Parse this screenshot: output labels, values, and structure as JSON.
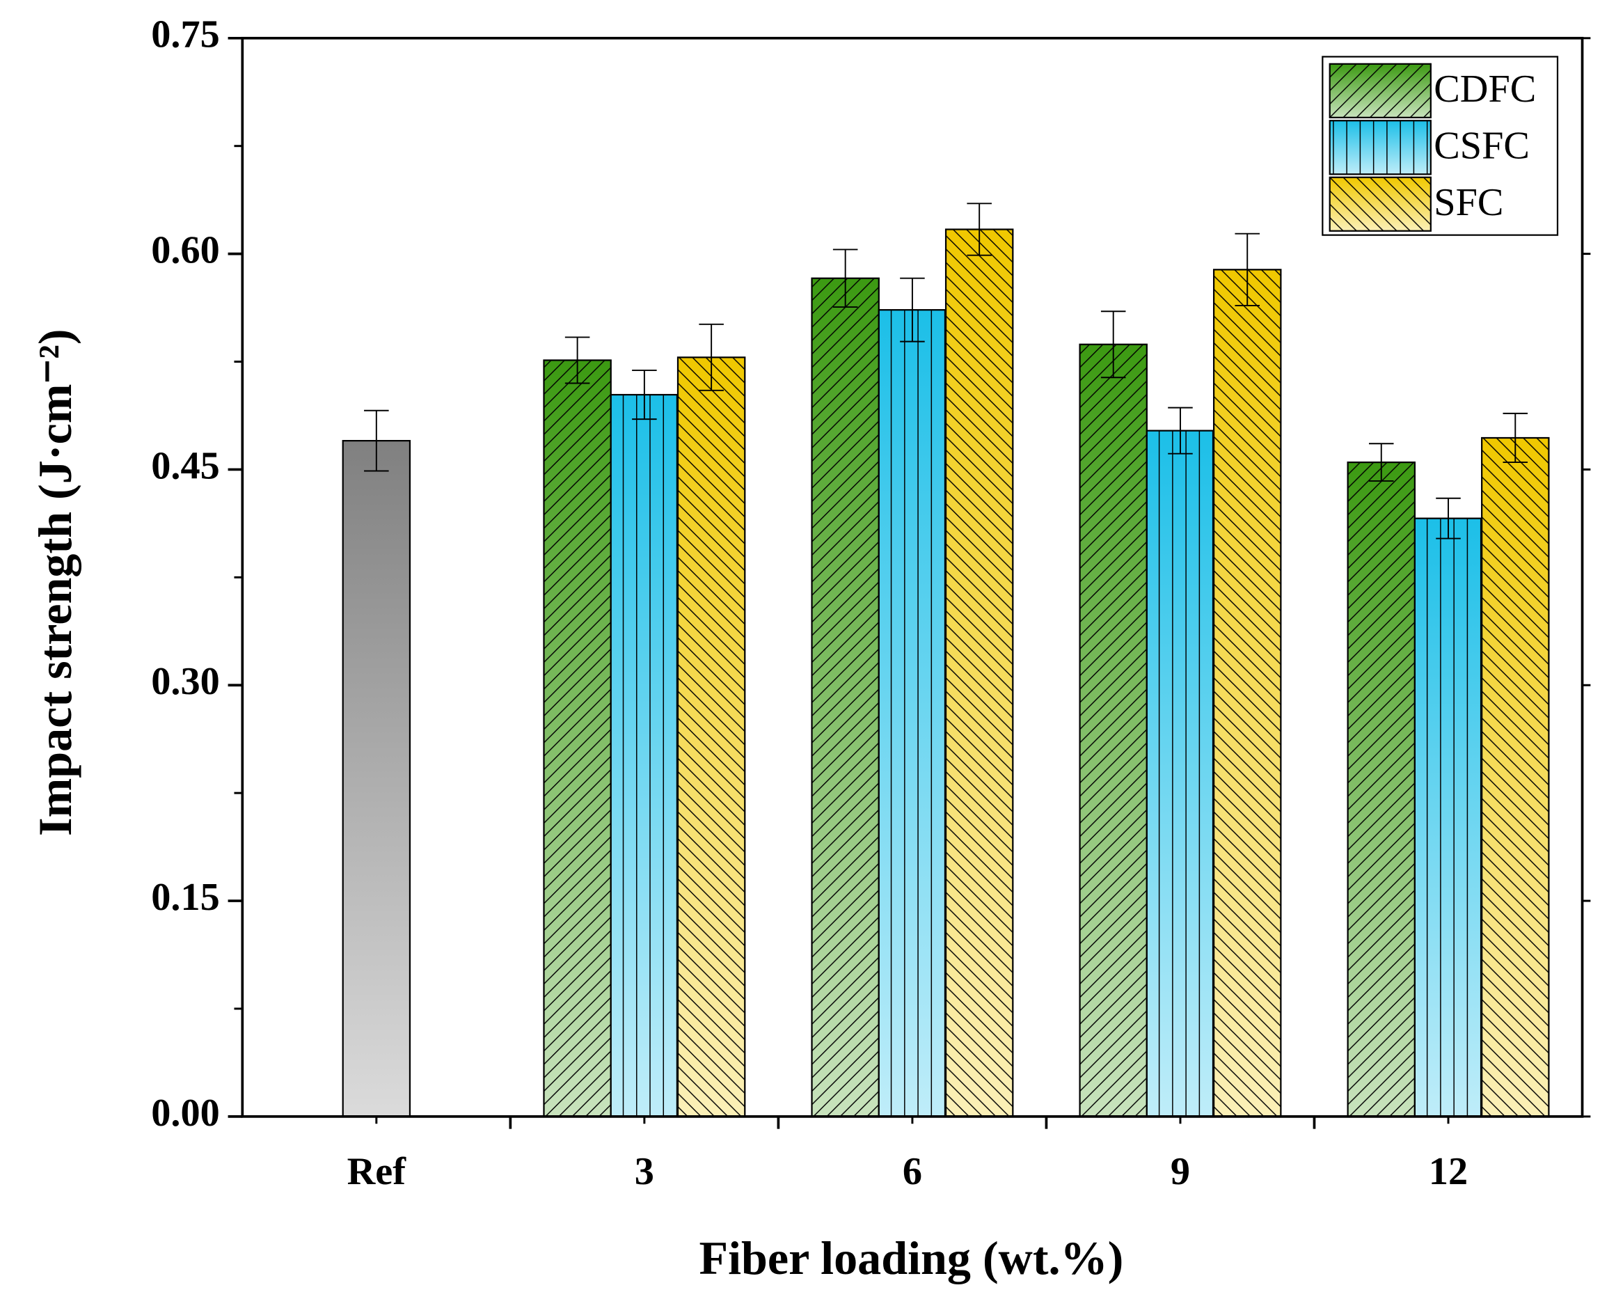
{
  "chart_data": {
    "type": "bar",
    "categories": [
      "Ref",
      "3",
      "6",
      "9",
      "12"
    ],
    "xlabel": "Fiber loading (wt.%)",
    "ylabel": "Impact strength (J·cm⁻²)",
    "reference": {
      "value": 0.47,
      "error": 0.021,
      "color": "#808080"
    },
    "series": [
      {
        "name": "CDFC",
        "color": "#3c9a12",
        "hatch": "forward",
        "values": [
          null,
          0.526,
          0.583,
          0.537,
          0.455
        ],
        "errors": [
          null,
          0.016,
          0.02,
          0.023,
          0.013
        ]
      },
      {
        "name": "CSFC",
        "color": "#1cbfe8",
        "hatch": "vertical",
        "values": [
          null,
          0.502,
          0.561,
          0.477,
          0.416
        ],
        "errors": [
          null,
          0.017,
          0.022,
          0.016,
          0.014
        ]
      },
      {
        "name": "SFC",
        "color": "#f0c800",
        "hatch": "backward",
        "values": [
          null,
          0.528,
          0.617,
          0.589,
          0.472
        ],
        "errors": [
          null,
          0.023,
          0.018,
          0.025,
          0.017
        ]
      }
    ],
    "ylim": [
      0,
      0.75
    ],
    "yticks": [
      {
        "value": 0,
        "label": "0.00"
      },
      {
        "value": 0.15,
        "label": "0.15"
      },
      {
        "value": 0.3,
        "label": "0.30"
      },
      {
        "value": 0.45,
        "label": "0.45"
      },
      {
        "value": 0.6,
        "label": "0.60"
      },
      {
        "value": 0.75,
        "label": "0.75"
      }
    ],
    "legend": "upper right"
  }
}
